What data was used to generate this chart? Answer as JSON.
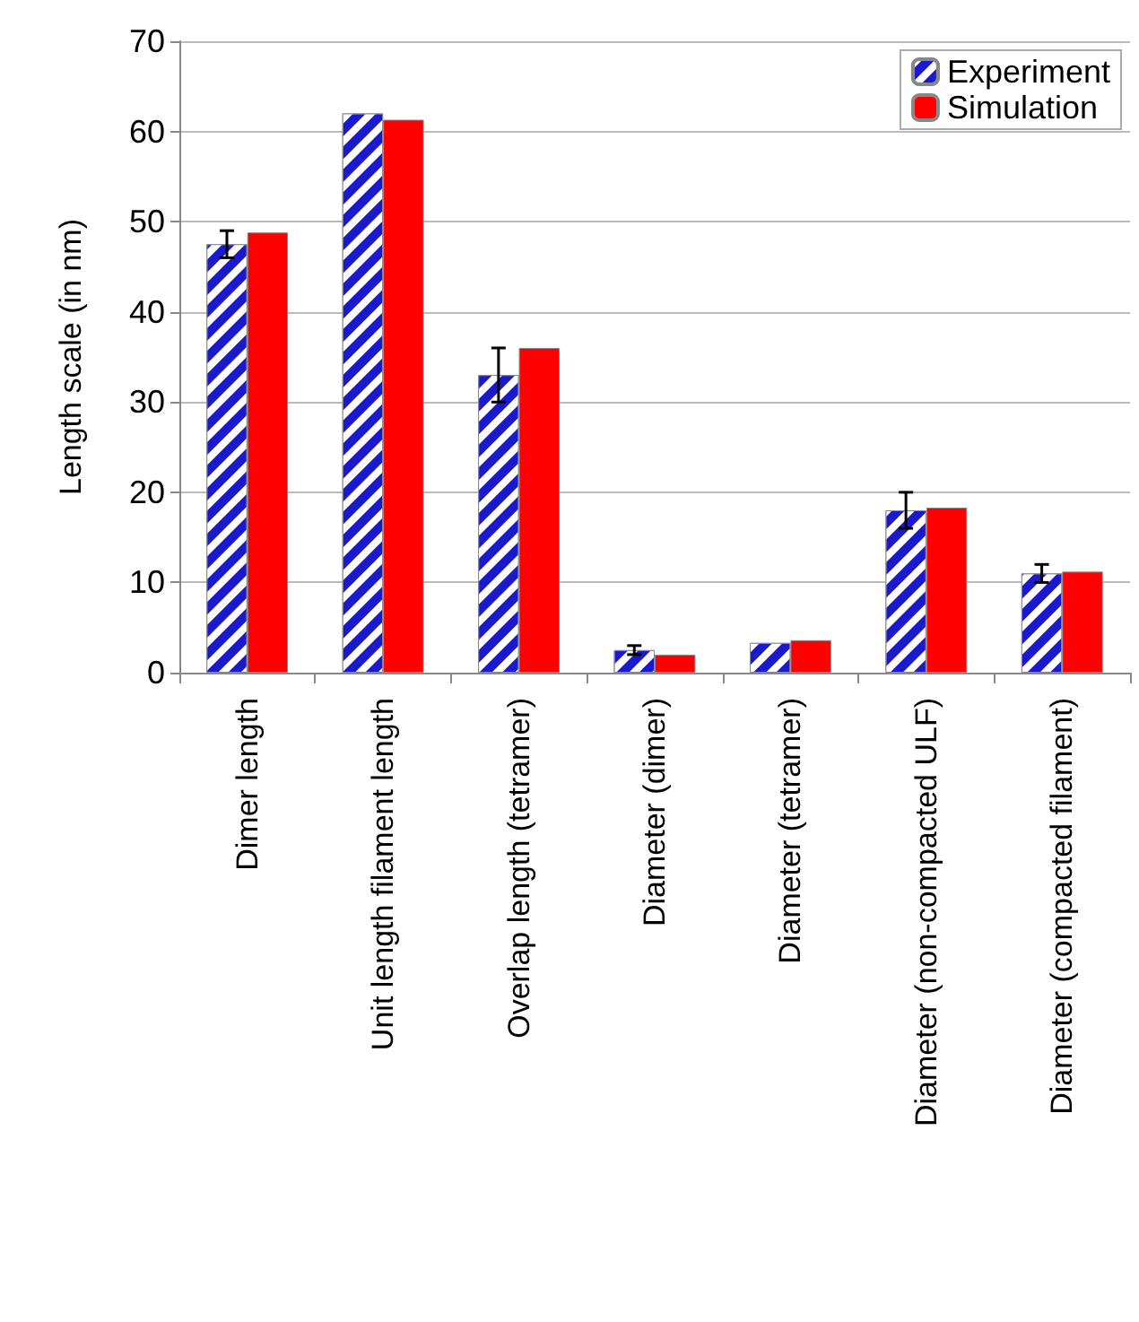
{
  "chart_data": {
    "type": "bar",
    "ylabel": "Length scale (in nm)",
    "categories": [
      "Dimer length",
      "Unit length filament length",
      "Overlap length (tetramer)",
      "Diameter (dimer)",
      "Diameter (tetramer)",
      "Diameter (non-compacted ULF)",
      "Diameter (compacted filament)"
    ],
    "series": [
      {
        "name": "Experiment",
        "color": "#1a1acc",
        "values": [
          47.5,
          62,
          33,
          2.5,
          3.3,
          18,
          11
        ],
        "errors": [
          1.5,
          null,
          3,
          0.5,
          null,
          2,
          1
        ]
      },
      {
        "name": "Simulation",
        "color": "#ff0000",
        "values": [
          48.8,
          61.3,
          36,
          2,
          3.6,
          18.3,
          11.2
        ]
      }
    ],
    "ylim": [
      0,
      70
    ],
    "yticks": [
      0,
      10,
      20,
      30,
      40,
      50,
      60,
      70
    ],
    "grid": "y",
    "legend": "top right"
  }
}
